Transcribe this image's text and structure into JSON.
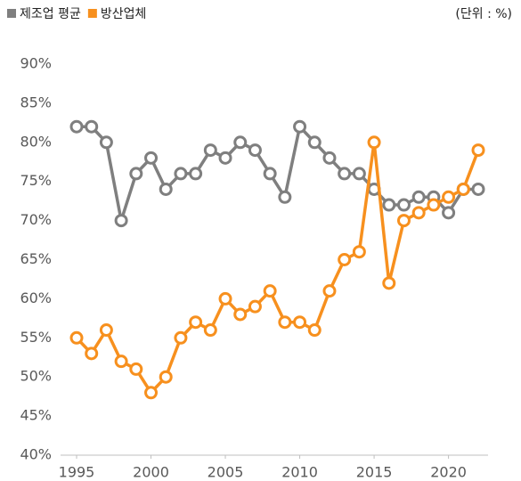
{
  "chart_data": {
    "type": "line",
    "unit_note": "(단위 : %)",
    "x": [
      1995,
      1996,
      1997,
      1998,
      1999,
      2000,
      2001,
      2002,
      2003,
      2004,
      2005,
      2006,
      2007,
      2008,
      2009,
      2010,
      2011,
      2012,
      2013,
      2014,
      2015,
      2016,
      2017,
      2018,
      2019,
      2020,
      2021,
      2022
    ],
    "series": [
      {
        "name": "제조업 평균",
        "color": "#7f7f7f",
        "values": [
          82,
          82,
          80,
          70,
          76,
          78,
          74,
          76,
          76,
          79,
          78,
          80,
          79,
          76,
          73,
          82,
          80,
          78,
          76,
          76,
          74,
          72,
          72,
          73,
          73,
          71,
          74,
          74
        ]
      },
      {
        "name": "방산업체",
        "color": "#f7901e",
        "values": [
          55,
          53,
          56,
          52,
          51,
          48,
          50,
          55,
          57,
          56,
          60,
          58,
          59,
          61,
          57,
          57,
          56,
          61,
          65,
          66,
          80,
          62,
          70,
          71,
          72,
          73,
          74,
          79
        ]
      }
    ],
    "xlim": [
      1995,
      2022
    ],
    "xticks": [
      1995,
      2000,
      2005,
      2010,
      2015,
      2020
    ],
    "ylim": [
      40,
      90
    ],
    "yticks": [
      {
        "value": 40,
        "label": "40%"
      },
      {
        "value": 45,
        "label": "45%"
      },
      {
        "value": 50,
        "label": "50%"
      },
      {
        "value": 55,
        "label": "55%"
      },
      {
        "value": 60,
        "label": "60%"
      },
      {
        "value": 65,
        "label": "65%"
      },
      {
        "value": 70,
        "label": "70%"
      },
      {
        "value": 75,
        "label": "75%"
      },
      {
        "value": 80,
        "label": "80%"
      },
      {
        "value": 85,
        "label": "85%"
      },
      {
        "value": 90,
        "label": "90%"
      }
    ],
    "legend": "top-left",
    "grid": false
  }
}
